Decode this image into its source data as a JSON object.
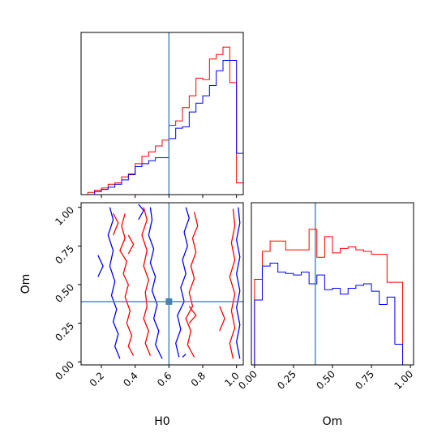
{
  "chart_data": {
    "type": "corner",
    "parameters": [
      "H0",
      "Om"
    ],
    "truth": {
      "H0": 0.6,
      "Om": 0.39
    },
    "truth_color": "#4682b4",
    "series": [
      {
        "name": "",
        "color": "#ff0000"
      },
      {
        "name": "",
        "color": "#0000ff"
      }
    ],
    "panels": [
      {
        "name": "hist-H0",
        "type": "histogram",
        "xlim": [
          0.08,
          1.04
        ],
        "ylim": [
          0,
          1.1
        ],
        "bin_edges": [
          0.08,
          0.12,
          0.16,
          0.2,
          0.24,
          0.28,
          0.32,
          0.36,
          0.4,
          0.44,
          0.48,
          0.52,
          0.56,
          0.6,
          0.64,
          0.68,
          0.72,
          0.76,
          0.8,
          0.84,
          0.88,
          0.92,
          0.96,
          1.0,
          1.04
        ],
        "series_values": [
          [
            0.0,
            0.015,
            0.03,
            0.045,
            0.07,
            0.08,
            0.12,
            0.14,
            0.21,
            0.26,
            0.29,
            0.33,
            0.37,
            0.47,
            0.5,
            0.59,
            0.67,
            0.79,
            0.78,
            0.92,
            0.95,
            1.0,
            0.76,
            0.08
          ],
          [
            0.0,
            0.0,
            0.02,
            0.035,
            0.05,
            0.07,
            0.1,
            0.135,
            0.19,
            0.21,
            0.23,
            0.25,
            0.25,
            0.38,
            0.45,
            0.46,
            0.56,
            0.62,
            0.67,
            0.74,
            0.84,
            0.91,
            0.91,
            0.28
          ]
        ]
      },
      {
        "name": "hist-Om",
        "type": "histogram",
        "xlim": [
          -0.02,
          1.02
        ],
        "ylim": [
          0,
          1.1
        ],
        "bin_edges": [
          0.0,
          0.05,
          0.1,
          0.15,
          0.2,
          0.25,
          0.3,
          0.35,
          0.4,
          0.45,
          0.5,
          0.55,
          0.6,
          0.65,
          0.7,
          0.75,
          0.8,
          0.85,
          0.9,
          0.95,
          1.0
        ],
        "series_values": [
          [
            0.58,
            0.77,
            0.84,
            0.84,
            0.78,
            0.78,
            0.78,
            0.92,
            0.73,
            0.87,
            0.76,
            0.79,
            0.8,
            0.78,
            0.77,
            0.75,
            0.75,
            0.56,
            0.56,
            0.0
          ],
          [
            0.44,
            0.67,
            0.69,
            0.63,
            0.62,
            0.61,
            0.63,
            0.55,
            0.61,
            0.51,
            0.52,
            0.48,
            0.52,
            0.54,
            0.55,
            0.5,
            0.41,
            0.46,
            0.14,
            0.0
          ]
        ]
      },
      {
        "name": "contour-H0-Om",
        "type": "contour",
        "xlim": [
          0.08,
          1.04
        ],
        "ylim": [
          -0.02,
          1.03
        ]
      }
    ],
    "axes": {
      "H0": {
        "label": "H0",
        "ticks": [
          0.2,
          0.4,
          0.6,
          0.8,
          1.0
        ],
        "tick_labels": [
          "0.2",
          "0.4",
          "0.6",
          "0.8",
          "1.0"
        ]
      },
      "Om_y": {
        "label": "Om",
        "ticks": [
          0.0,
          0.25,
          0.5,
          0.75,
          1.0
        ],
        "tick_labels": [
          "0.00",
          "0.25",
          "0.50",
          "0.75",
          "1.00"
        ]
      },
      "Om_x": {
        "label": "Om",
        "ticks": [
          0.0,
          0.25,
          0.5,
          0.75,
          1.0
        ],
        "tick_labels": [
          "0.00",
          "0.25",
          "0.50",
          "0.75",
          "1.00"
        ]
      }
    },
    "contours": {
      "red": [
        [
          [
            0.39,
            0.04
          ],
          [
            0.36,
            0.1
          ],
          [
            0.38,
            0.17
          ],
          [
            0.35,
            0.25
          ],
          [
            0.37,
            0.33
          ],
          [
            0.34,
            0.42
          ],
          [
            0.36,
            0.5
          ],
          [
            0.33,
            0.57
          ],
          [
            0.35,
            0.65
          ],
          [
            0.31,
            0.72
          ],
          [
            0.34,
            0.8
          ],
          [
            0.32,
            0.88
          ],
          [
            0.34,
            0.96
          ]
        ],
        [
          [
            0.49,
            0.04
          ],
          [
            0.46,
            0.12
          ],
          [
            0.48,
            0.2
          ],
          [
            0.45,
            0.28
          ],
          [
            0.47,
            0.36
          ],
          [
            0.46,
            0.45
          ],
          [
            0.48,
            0.53
          ],
          [
            0.45,
            0.62
          ],
          [
            0.47,
            0.72
          ],
          [
            0.44,
            0.82
          ],
          [
            0.47,
            0.92
          ],
          [
            0.45,
            1.0
          ]
        ],
        [
          [
            0.75,
            0.03
          ],
          [
            0.71,
            0.11
          ],
          [
            0.73,
            0.2
          ],
          [
            0.7,
            0.28
          ],
          [
            0.74,
            0.36
          ],
          [
            0.72,
            0.45
          ],
          [
            0.75,
            0.54
          ],
          [
            0.73,
            0.62
          ],
          [
            0.76,
            0.71
          ],
          [
            0.74,
            0.8
          ],
          [
            0.77,
            0.88
          ],
          [
            0.75,
            0.97
          ]
        ],
        [
          [
            0.98,
            0.02
          ],
          [
            0.96,
            0.12
          ],
          [
            0.99,
            0.22
          ],
          [
            0.97,
            0.33
          ],
          [
            0.99,
            0.44
          ],
          [
            0.96,
            0.55
          ],
          [
            0.99,
            0.66
          ],
          [
            0.97,
            0.77
          ],
          [
            0.99,
            0.88
          ],
          [
            0.98,
            0.99
          ]
        ],
        [
          [
            0.27,
            0.82
          ],
          [
            0.3,
            0.9
          ],
          [
            0.27,
            0.96
          ]
        ],
        [
          [
            0.36,
            0.7
          ],
          [
            0.39,
            0.76
          ],
          [
            0.36,
            0.82
          ]
        ],
        [
          [
            0.9,
            0.2
          ],
          [
            0.93,
            0.28
          ],
          [
            0.9,
            0.36
          ]
        ],
        [
          [
            0.72,
            0.25
          ],
          [
            0.76,
            0.3
          ],
          [
            0.72,
            0.36
          ]
        ]
      ],
      "blue": [
        [
          [
            0.31,
            0.02
          ],
          [
            0.28,
            0.1
          ],
          [
            0.3,
            0.18
          ],
          [
            0.27,
            0.26
          ],
          [
            0.29,
            0.34
          ],
          [
            0.26,
            0.43
          ],
          [
            0.28,
            0.52
          ],
          [
            0.25,
            0.62
          ],
          [
            0.27,
            0.72
          ],
          [
            0.24,
            0.82
          ],
          [
            0.27,
            0.92
          ],
          [
            0.25,
            1.0
          ]
        ],
        [
          [
            0.56,
            0.02
          ],
          [
            0.52,
            0.11
          ],
          [
            0.54,
            0.2
          ],
          [
            0.51,
            0.28
          ],
          [
            0.53,
            0.37
          ],
          [
            0.5,
            0.46
          ],
          [
            0.52,
            0.55
          ],
          [
            0.49,
            0.64
          ],
          [
            0.51,
            0.73
          ],
          [
            0.48,
            0.82
          ],
          [
            0.5,
            0.92
          ],
          [
            0.49,
            1.0
          ]
        ],
        [
          [
            0.66,
            0.03
          ],
          [
            0.64,
            0.12
          ],
          [
            0.67,
            0.21
          ],
          [
            0.65,
            0.3
          ],
          [
            0.69,
            0.39
          ],
          [
            0.67,
            0.48
          ],
          [
            0.7,
            0.57
          ],
          [
            0.68,
            0.66
          ],
          [
            0.71,
            0.75
          ],
          [
            0.69,
            0.84
          ],
          [
            0.72,
            0.93
          ],
          [
            0.7,
            1.0
          ]
        ],
        [
          [
            1.02,
            0.02
          ],
          [
            1.0,
            0.13
          ],
          [
            1.02,
            0.24
          ],
          [
            1.0,
            0.35
          ],
          [
            1.02,
            0.46
          ],
          [
            1.0,
            0.57
          ],
          [
            1.02,
            0.68
          ],
          [
            1.0,
            0.79
          ],
          [
            1.02,
            0.9
          ],
          [
            1.01,
            1.0
          ]
        ],
        [
          [
            0.18,
            0.55
          ],
          [
            0.21,
            0.62
          ],
          [
            0.18,
            0.69
          ]
        ],
        [
          [
            0.42,
            0.92
          ],
          [
            0.45,
            0.98
          ],
          [
            0.42,
            1.02
          ]
        ],
        [
          [
            0.68,
            0.03
          ],
          [
            0.7,
            0.05
          ]
        ]
      ]
    }
  }
}
